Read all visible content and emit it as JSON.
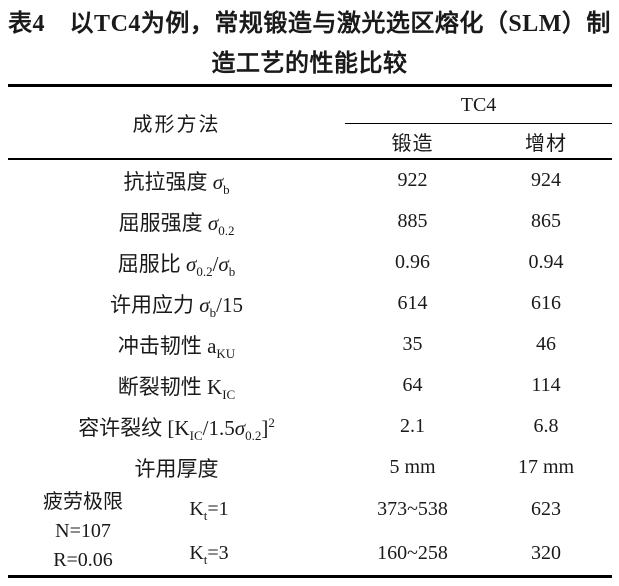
{
  "title": {
    "line1": "表4　以TC4为例，常规锻造与激光选区熔化（SLM）制",
    "line2": "造工艺的性能比较"
  },
  "table": {
    "header": {
      "method_label": "成形方法",
      "group_label": "TC4",
      "col_forging": "锻造",
      "col_additive": "增材"
    },
    "rows": [
      {
        "label": [
          [
            "t",
            "抗拉强度 "
          ],
          [
            "i",
            "σ"
          ],
          [
            "sub",
            "b"
          ]
        ],
        "forging": "922",
        "additive": "924"
      },
      {
        "label": [
          [
            "t",
            "屈服强度 "
          ],
          [
            "i",
            "σ"
          ],
          [
            "sub",
            "0.2"
          ]
        ],
        "forging": "885",
        "additive": "865"
      },
      {
        "label": [
          [
            "t",
            "屈服比 "
          ],
          [
            "i",
            "σ"
          ],
          [
            "sub",
            "0.2"
          ],
          [
            "t",
            "/"
          ],
          [
            "i",
            "σ"
          ],
          [
            "sub",
            "b"
          ]
        ],
        "forging": "0.96",
        "additive": "0.94"
      },
      {
        "label": [
          [
            "t",
            "许用应力 "
          ],
          [
            "i",
            "σ"
          ],
          [
            "sub",
            "b"
          ],
          [
            "t",
            "/15"
          ]
        ],
        "forging": "614",
        "additive": "616"
      },
      {
        "label": [
          [
            "t",
            "冲击韧性 a"
          ],
          [
            "sub",
            "KU"
          ]
        ],
        "forging": "35",
        "additive": "46"
      },
      {
        "label": [
          [
            "t",
            "断裂韧性 K"
          ],
          [
            "sub",
            "IC"
          ]
        ],
        "forging": "64",
        "additive": "114"
      },
      {
        "label": [
          [
            "t",
            "容许裂纹 [K"
          ],
          [
            "sub",
            "IC"
          ],
          [
            "t",
            "/1.5"
          ],
          [
            "i",
            "σ"
          ],
          [
            "sub",
            "0.2"
          ],
          [
            "t",
            "]"
          ],
          [
            "sup",
            "2"
          ]
        ],
        "forging": "2.1",
        "additive": "6.8"
      },
      {
        "label": [
          [
            "t",
            "许用厚度"
          ]
        ],
        "forging": "5 mm",
        "additive": "17 mm"
      }
    ],
    "fatigue": {
      "label_lines": [
        "疲劳极限",
        "N=107",
        "R=0.06"
      ],
      "rows": [
        {
          "kt": [
            [
              "t",
              "K"
            ],
            [
              "sub",
              "t"
            ],
            [
              "t",
              "=1"
            ]
          ],
          "forging": "373~538",
          "additive": "623"
        },
        {
          "kt": [
            [
              "t",
              "K"
            ],
            [
              "sub",
              "t"
            ],
            [
              "t",
              "=3"
            ]
          ],
          "forging": "160~258",
          "additive": "320"
        }
      ]
    }
  },
  "colors": {
    "text": "#1a1a1a",
    "rule": "#000000",
    "background": "#ffffff"
  }
}
